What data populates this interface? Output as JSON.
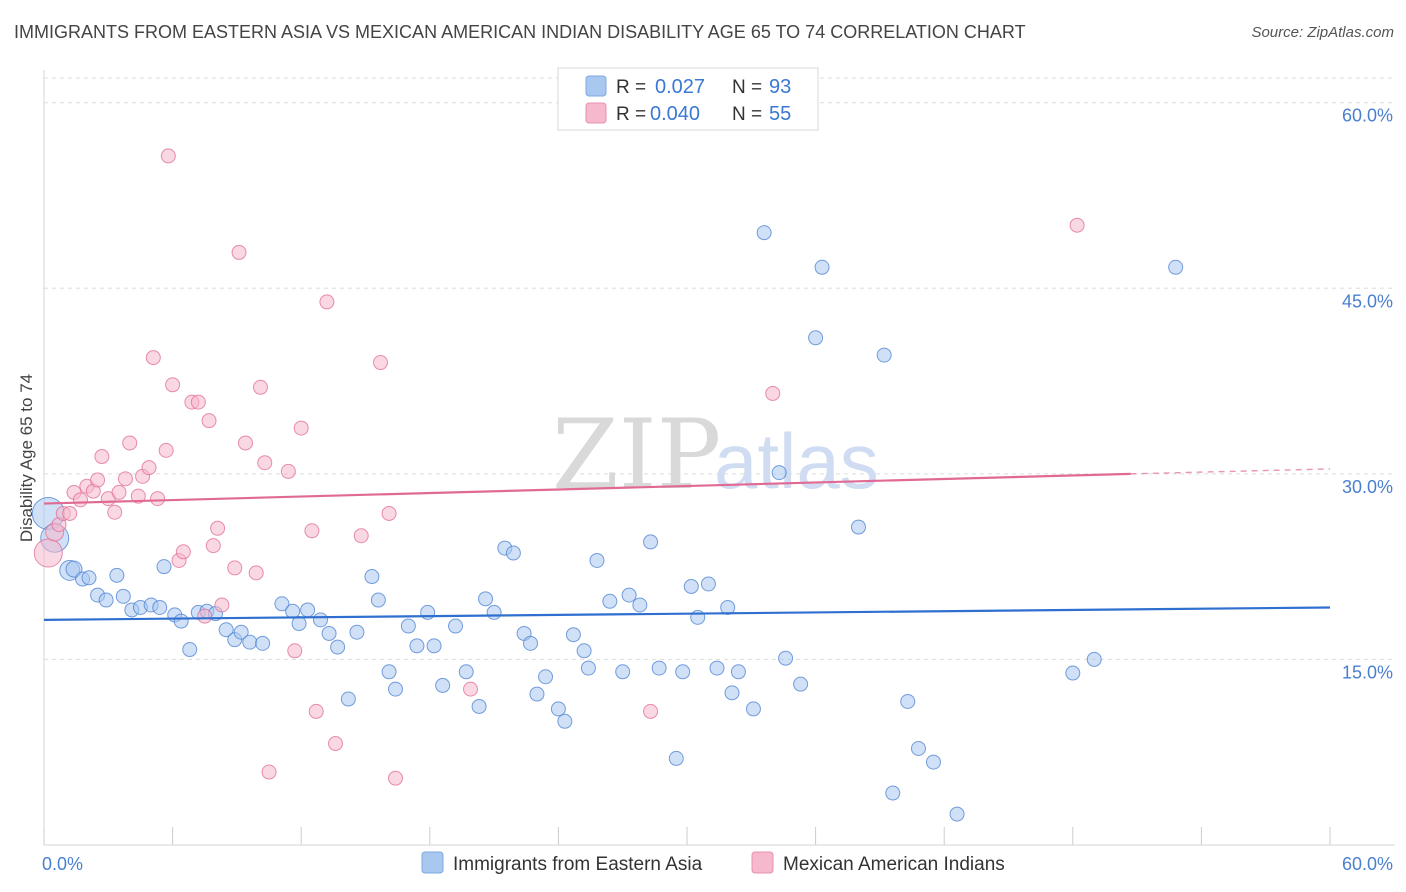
{
  "title": "IMMIGRANTS FROM EASTERN ASIA VS MEXICAN AMERICAN INDIAN DISABILITY AGE 65 TO 74 CORRELATION CHART",
  "source": "Source: ZipAtlas.com",
  "watermark": {
    "zip": "ZIP",
    "atlas": "atlas"
  },
  "legend": {
    "rows": [
      {
        "r_label": "R =",
        "r_value": "0.027",
        "n_label": "N =",
        "n_value": "93",
        "color": "#a9c8f0"
      },
      {
        "r_label": "R =",
        "r_value": "0.040",
        "n_label": "N =",
        "n_value": "55",
        "color": "#f5b8cc"
      }
    ]
  },
  "chart_data": {
    "type": "scatter",
    "title": "IMMIGRANTS FROM EASTERN ASIA VS MEXICAN AMERICAN INDIAN DISABILITY AGE 65 TO 74 CORRELATION CHART",
    "xlabel": "",
    "ylabel": "Disability Age 65 to 74",
    "xlim": [
      0,
      60
    ],
    "ylim": [
      0,
      62
    ],
    "x_tick_labels": [
      {
        "value": 0,
        "label": "0.0%"
      },
      {
        "value": 60,
        "label": "60.0%"
      }
    ],
    "y_tick_labels": [
      {
        "value": 15,
        "label": "15.0%"
      },
      {
        "value": 30,
        "label": "30.0%"
      },
      {
        "value": 45,
        "label": "45.0%"
      },
      {
        "value": 60,
        "label": "60.0%"
      }
    ],
    "x_minor_ticks": [
      0,
      6,
      12,
      18,
      24,
      30,
      36,
      42,
      48,
      54,
      60
    ],
    "grid": true,
    "legend_position": "bottom",
    "series": [
      {
        "name": "Immigrants from Eastern Asia",
        "color": "#4a7fd0",
        "fill": "#a9c8f0",
        "trend": {
          "x": [
            0,
            60
          ],
          "y": [
            18.2,
            19.2
          ],
          "color": "#2f6fd0"
        },
        "points": [
          [
            0.2,
            26.8,
            16
          ],
          [
            0.5,
            24.8,
            14
          ],
          [
            1.2,
            22.2,
            10
          ],
          [
            1.4,
            22.3,
            8
          ],
          [
            1.8,
            21.5,
            7
          ],
          [
            2.1,
            21.6,
            7
          ],
          [
            2.5,
            20.2,
            7
          ],
          [
            2.9,
            19.8,
            7
          ],
          [
            3.4,
            21.8,
            7
          ],
          [
            3.7,
            20.1,
            7
          ],
          [
            4.1,
            19.0,
            7
          ],
          [
            4.5,
            19.2,
            7
          ],
          [
            5.0,
            19.4,
            7
          ],
          [
            5.4,
            19.2,
            7
          ],
          [
            5.6,
            22.5,
            7
          ],
          [
            6.1,
            18.6,
            7
          ],
          [
            6.4,
            18.1,
            7
          ],
          [
            6.8,
            15.8,
            7
          ],
          [
            7.2,
            18.8,
            7
          ],
          [
            7.6,
            18.9,
            7
          ],
          [
            8.0,
            18.7,
            7
          ],
          [
            8.5,
            17.4,
            7
          ],
          [
            8.9,
            16.6,
            7
          ],
          [
            9.2,
            17.2,
            7
          ],
          [
            9.6,
            16.4,
            7
          ],
          [
            10.2,
            16.3,
            7
          ],
          [
            11.1,
            19.5,
            7
          ],
          [
            11.6,
            18.9,
            7
          ],
          [
            11.9,
            17.9,
            7
          ],
          [
            12.3,
            19.0,
            7
          ],
          [
            12.9,
            18.2,
            7
          ],
          [
            13.3,
            17.1,
            7
          ],
          [
            13.7,
            16.0,
            7
          ],
          [
            14.2,
            11.8,
            7
          ],
          [
            14.6,
            17.2,
            7
          ],
          [
            15.3,
            21.7,
            7
          ],
          [
            15.6,
            19.8,
            7
          ],
          [
            16.1,
            14.0,
            7
          ],
          [
            16.4,
            12.6,
            7
          ],
          [
            17.0,
            17.7,
            7
          ],
          [
            17.4,
            16.1,
            7
          ],
          [
            17.9,
            18.8,
            7
          ],
          [
            18.2,
            16.1,
            7
          ],
          [
            18.6,
            12.9,
            7
          ],
          [
            19.2,
            17.7,
            7
          ],
          [
            19.7,
            14.0,
            7
          ],
          [
            20.3,
            11.2,
            7
          ],
          [
            20.6,
            19.9,
            7
          ],
          [
            21.0,
            18.8,
            7
          ],
          [
            21.5,
            24.0,
            7
          ],
          [
            21.9,
            23.6,
            7
          ],
          [
            22.4,
            17.1,
            7
          ],
          [
            22.7,
            16.3,
            7
          ],
          [
            23.0,
            12.2,
            7
          ],
          [
            23.4,
            13.6,
            7
          ],
          [
            24.0,
            11.0,
            7
          ],
          [
            24.3,
            10.0,
            7
          ],
          [
            24.7,
            17.0,
            7
          ],
          [
            25.2,
            15.7,
            7
          ],
          [
            25.4,
            14.3,
            7
          ],
          [
            25.8,
            23.0,
            7
          ],
          [
            26.4,
            19.7,
            7
          ],
          [
            27.0,
            14.0,
            7
          ],
          [
            27.3,
            20.2,
            7
          ],
          [
            27.8,
            19.4,
            7
          ],
          [
            28.3,
            24.5,
            7
          ],
          [
            28.7,
            14.3,
            7
          ],
          [
            29.5,
            7.0,
            7
          ],
          [
            29.8,
            14.0,
            7
          ],
          [
            30.2,
            20.9,
            7
          ],
          [
            30.5,
            18.4,
            7
          ],
          [
            31.0,
            21.1,
            7
          ],
          [
            31.4,
            14.3,
            7
          ],
          [
            31.9,
            19.2,
            7
          ],
          [
            32.1,
            12.3,
            7
          ],
          [
            32.4,
            14.0,
            7
          ],
          [
            33.1,
            11.0,
            7
          ],
          [
            33.6,
            49.5,
            7
          ],
          [
            34.3,
            30.1,
            7
          ],
          [
            34.6,
            15.1,
            7
          ],
          [
            35.3,
            13.0,
            7
          ],
          [
            36.0,
            41.0,
            7
          ],
          [
            36.3,
            46.7,
            7
          ],
          [
            38.0,
            25.7,
            7
          ],
          [
            39.2,
            39.6,
            7
          ],
          [
            39.6,
            4.2,
            7
          ],
          [
            40.3,
            11.6,
            7
          ],
          [
            40.8,
            7.8,
            7
          ],
          [
            41.5,
            6.7,
            7
          ],
          [
            42.6,
            2.5,
            7
          ],
          [
            48.0,
            13.9,
            7
          ],
          [
            49.0,
            15.0,
            7
          ],
          [
            52.8,
            46.7,
            7
          ]
        ]
      },
      {
        "name": "Mexican American Indians",
        "color": "#e06a94",
        "fill": "#f5b8cc",
        "trend": {
          "x": [
            0,
            50.7
          ],
          "y": [
            27.6,
            30.0
          ],
          "dashed_to": [
            60,
            30.4
          ],
          "color": "#e06a94"
        },
        "points": [
          [
            0.2,
            23.6,
            14
          ],
          [
            0.5,
            25.3,
            9
          ],
          [
            0.7,
            25.9,
            7
          ],
          [
            0.9,
            26.8,
            7
          ],
          [
            1.2,
            26.8,
            7
          ],
          [
            1.4,
            28.5,
            7
          ],
          [
            1.7,
            27.9,
            7
          ],
          [
            2.0,
            29.0,
            7
          ],
          [
            2.3,
            28.6,
            7
          ],
          [
            2.5,
            29.5,
            7
          ],
          [
            2.7,
            31.4,
            7
          ],
          [
            3.0,
            28.0,
            7
          ],
          [
            3.3,
            26.9,
            7
          ],
          [
            3.5,
            28.5,
            7
          ],
          [
            3.8,
            29.6,
            7
          ],
          [
            4.0,
            32.5,
            7
          ],
          [
            4.4,
            28.2,
            7
          ],
          [
            4.6,
            29.8,
            7
          ],
          [
            4.9,
            30.5,
            7
          ],
          [
            5.1,
            39.4,
            7
          ],
          [
            5.3,
            28.0,
            7
          ],
          [
            5.7,
            31.9,
            7
          ],
          [
            5.8,
            55.7,
            7
          ],
          [
            6.0,
            37.2,
            7
          ],
          [
            6.3,
            23.0,
            7
          ],
          [
            6.5,
            23.7,
            7
          ],
          [
            6.9,
            35.8,
            7
          ],
          [
            7.2,
            35.8,
            7
          ],
          [
            7.5,
            18.5,
            7
          ],
          [
            7.7,
            34.3,
            7
          ],
          [
            7.9,
            24.2,
            7
          ],
          [
            8.1,
            25.6,
            7
          ],
          [
            8.3,
            19.4,
            7
          ],
          [
            8.9,
            22.4,
            7
          ],
          [
            9.1,
            47.9,
            7
          ],
          [
            9.4,
            32.5,
            7
          ],
          [
            9.9,
            22.0,
            7
          ],
          [
            10.1,
            37.0,
            7
          ],
          [
            10.3,
            30.9,
            7
          ],
          [
            10.5,
            5.9,
            7
          ],
          [
            11.4,
            30.2,
            7
          ],
          [
            11.7,
            15.7,
            7
          ],
          [
            12.0,
            33.7,
            7
          ],
          [
            12.5,
            25.4,
            7
          ],
          [
            12.7,
            10.8,
            7
          ],
          [
            13.2,
            43.9,
            7
          ],
          [
            13.6,
            8.2,
            7
          ],
          [
            14.8,
            25.0,
            7
          ],
          [
            15.7,
            39.0,
            7
          ],
          [
            16.1,
            26.8,
            7
          ],
          [
            16.4,
            5.4,
            7
          ],
          [
            19.9,
            12.6,
            7
          ],
          [
            28.3,
            10.8,
            7
          ],
          [
            34.0,
            36.5,
            7
          ],
          [
            48.2,
            50.1,
            7
          ]
        ]
      }
    ]
  }
}
